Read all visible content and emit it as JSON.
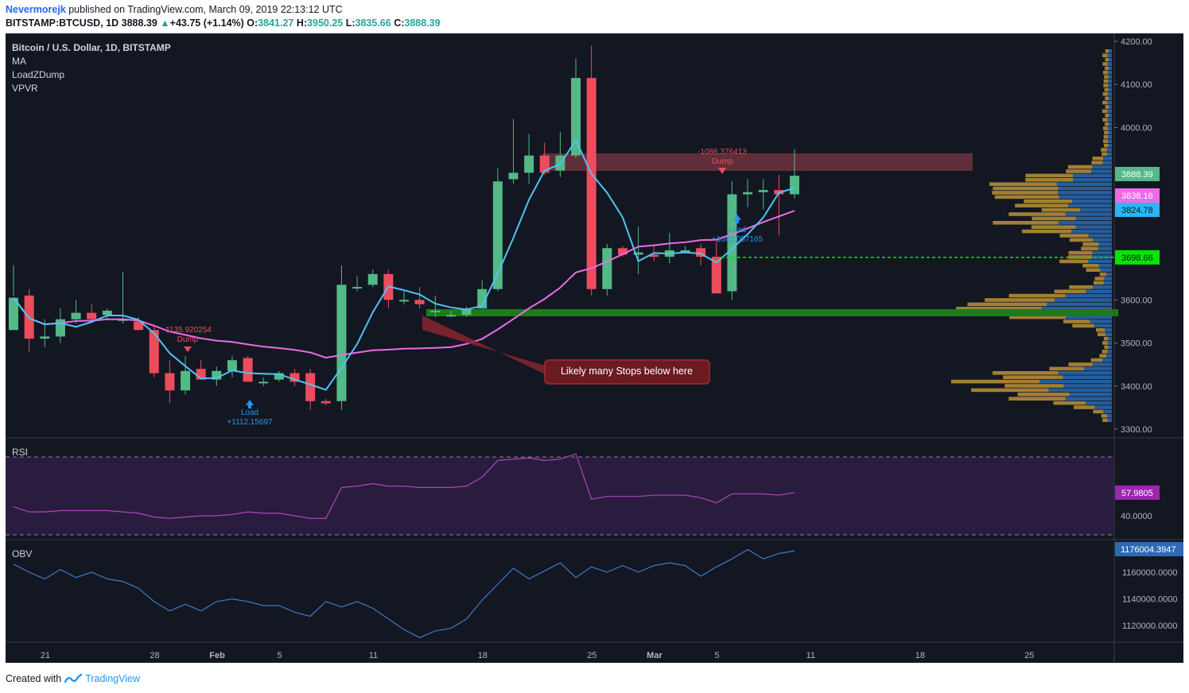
{
  "header": {
    "user": "Nevermorejk",
    "published": "published on TradingView.com, March 09, 2019 22:13:12 UTC",
    "symbol": "BITSTAMP:BTCUSD, 1D",
    "last": "3888.39",
    "change": "+43.75 (+1.14%)",
    "o_label": "O:",
    "o": "3841.27",
    "h_label": "H:",
    "h": "3950.25",
    "l_label": "L:",
    "l": "3835.66",
    "c_label": "C:",
    "c": "3888.39"
  },
  "legend": [
    "Bitcoin / U.S. Dollar, 1D, BITSTAMP",
    "MA",
    "LoadZDump",
    "VPVR"
  ],
  "footer": {
    "created": "Created with",
    "brand": "TradingView"
  },
  "colors": {
    "bg": "#131722",
    "up": "#53b987",
    "down": "#eb4d5c",
    "ma_fast": "#4fc3f7",
    "ma_slow": "#f06ae6",
    "rsi": "#9c27b0",
    "obv": "#2d6ab5"
  },
  "chart_data": [
    {
      "type": "candlestick",
      "title": "Bitcoin / U.S. Dollar, 1D, BITSTAMP",
      "ylim": [
        3260,
        4230
      ],
      "y_ticks": [
        "4200.00",
        "4100.00",
        "4000.00",
        "3900.00",
        "3800.00",
        "3700.00",
        "3600.00",
        "3500.00",
        "3400.00",
        "3300.00"
      ],
      "x_ticks": [
        {
          "label": "21",
          "day": 0
        },
        {
          "label": "28",
          "day": 7
        },
        {
          "label": "Feb",
          "day": 11
        },
        {
          "label": "5",
          "day": 15
        },
        {
          "label": "11",
          "day": 21
        },
        {
          "label": "18",
          "day": 28
        },
        {
          "label": "25",
          "day": 35
        },
        {
          "label": "Mar",
          "day": 39
        },
        {
          "label": "5",
          "day": 43
        },
        {
          "label": "11",
          "day": 49
        },
        {
          "label": "18",
          "day": 56
        },
        {
          "label": "25",
          "day": 63
        }
      ],
      "ohlc": [
        [
          3530,
          3610,
          3605,
          3680
        ],
        [
          3610,
          3480,
          3510,
          3625
        ],
        [
          3510,
          3490,
          3515,
          3555
        ],
        [
          3515,
          3500,
          3555,
          3580
        ],
        [
          3555,
          3545,
          3570,
          3600
        ],
        [
          3570,
          3550,
          3555,
          3590
        ],
        [
          3565,
          3555,
          3575,
          3580
        ],
        [
          3555,
          3545,
          3555,
          3665
        ],
        [
          3550,
          3530,
          3530,
          3560
        ],
        [
          3530,
          3420,
          3430,
          3540
        ],
        [
          3430,
          3360,
          3390,
          3460
        ],
        [
          3390,
          3380,
          3435,
          3470
        ],
        [
          3440,
          3420,
          3415,
          3460
        ],
        [
          3415,
          3400,
          3435,
          3445
        ],
        [
          3435,
          3420,
          3460,
          3470
        ],
        [
          3465,
          3410,
          3410,
          3470
        ],
        [
          3410,
          3400,
          3410,
          3420
        ],
        [
          3415,
          3410,
          3430,
          3435
        ],
        [
          3430,
          3400,
          3410,
          3440
        ],
        [
          3430,
          3345,
          3365,
          3440
        ],
        [
          3365,
          3355,
          3360,
          3370
        ],
        [
          3365,
          3345,
          3635,
          3680
        ],
        [
          3630,
          3620,
          3630,
          3655
        ],
        [
          3635,
          3630,
          3660,
          3670
        ],
        [
          3660,
          3580,
          3600,
          3670
        ],
        [
          3600,
          3590,
          3600,
          3620
        ],
        [
          3600,
          3580,
          3590,
          3630
        ],
        [
          3575,
          3560,
          3575,
          3610
        ],
        [
          3565,
          3560,
          3565,
          3575
        ],
        [
          3565,
          3560,
          3580,
          3585
        ],
        [
          3580,
          3580,
          3625,
          3645
        ],
        [
          3625,
          3620,
          3875,
          3905
        ],
        [
          3880,
          3870,
          3895,
          4020
        ],
        [
          3895,
          3870,
          3935,
          3985
        ],
        [
          3935,
          3890,
          3895,
          3965
        ],
        [
          3900,
          3885,
          3935,
          3990
        ],
        [
          3935,
          3930,
          4115,
          4160
        ],
        [
          4115,
          3610,
          3625,
          4190
        ],
        [
          3625,
          3610,
          3720,
          3730
        ],
        [
          3720,
          3700,
          3705,
          3725
        ],
        [
          3705,
          3660,
          3710,
          3770
        ],
        [
          3705,
          3690,
          3700,
          3725
        ],
        [
          3700,
          3685,
          3715,
          3755
        ],
        [
          3715,
          3710,
          3715,
          3725
        ],
        [
          3720,
          3680,
          3700,
          3730
        ],
        [
          3700,
          3670,
          3615,
          3735
        ],
        [
          3620,
          3600,
          3845,
          3875
        ],
        [
          3845,
          3815,
          3850,
          3880
        ],
        [
          3850,
          3810,
          3855,
          3880
        ],
        [
          3855,
          3750,
          3845,
          3890
        ],
        [
          3845,
          3835,
          3888,
          3950
        ]
      ],
      "ma_fast_label": "3824.78",
      "ma_slow_label": "3838.16",
      "price_label": "3888.39",
      "level_label": "3698.66",
      "annotations": [
        {
          "text": "Likely many Stops below here"
        },
        {
          "text": "1135.920254"
        },
        {
          "text": "Dump"
        },
        {
          "text": "Load"
        },
        {
          "text": "+1112.15697"
        },
        {
          "text": "-1086.376413"
        },
        {
          "text": "Dump"
        },
        {
          "text": "Load"
        },
        {
          "text": "+1043.057165"
        }
      ]
    },
    {
      "type": "line",
      "title": "RSI",
      "y_ticks": [
        "40.0000"
      ],
      "last_label": "57.9805",
      "values": [
        47,
        43,
        43,
        44,
        44,
        44,
        44,
        43,
        42,
        39,
        38,
        39,
        40,
        40,
        41,
        43,
        42,
        42,
        40,
        38,
        38,
        62,
        63,
        65,
        63,
        63,
        62,
        62,
        62,
        63,
        70,
        83,
        84,
        85,
        83,
        84,
        88,
        53,
        55,
        55,
        55,
        56,
        56,
        56,
        54,
        50,
        57,
        57,
        57,
        56,
        58
      ]
    },
    {
      "type": "line",
      "title": "OBV",
      "y_ticks": [
        "1160000.0000",
        "1140000.0000",
        "1120000.0000"
      ],
      "last_label": "1176004.3947",
      "values": [
        1166,
        1160,
        1155,
        1162,
        1156,
        1160,
        1155,
        1153,
        1148,
        1138,
        1131,
        1136,
        1131,
        1138,
        1140,
        1138,
        1135,
        1135,
        1130,
        1127,
        1138,
        1134,
        1138,
        1133,
        1125,
        1117,
        1111,
        1116,
        1118,
        1125,
        1139,
        1151,
        1163,
        1155,
        1161,
        1167,
        1156,
        1164,
        1160,
        1165,
        1160,
        1165,
        1167,
        1165,
        1157,
        1164,
        1170,
        1177,
        1170,
        1174,
        1176
      ]
    }
  ]
}
